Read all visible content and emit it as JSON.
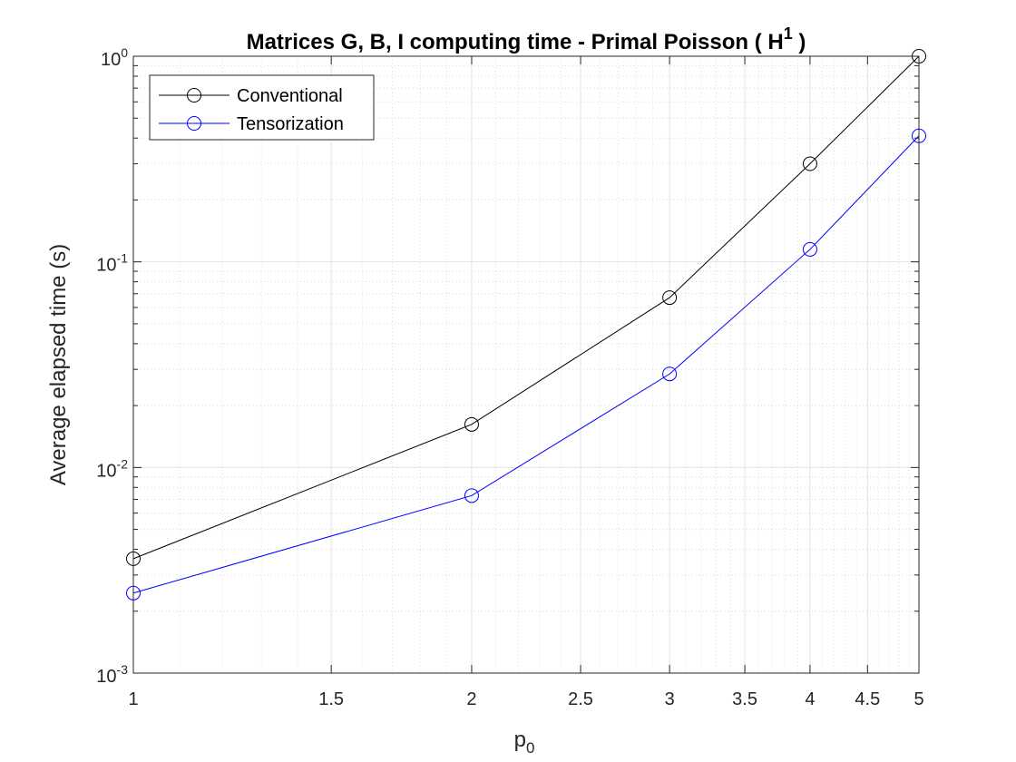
{
  "chart_data": {
    "type": "line",
    "title": "Matrices G, B, I computing time - Primal Poisson ( H",
    "title_superscript": "1",
    "title_suffix": " )",
    "xlabel": "p",
    "xlabel_subscript": "0",
    "ylabel": "Average elapsed time (s)",
    "x_scale": "log",
    "y_scale": "log",
    "xlim": [
      1,
      5
    ],
    "ylim": [
      0.001,
      1
    ],
    "x_ticks": [
      1,
      1.5,
      2,
      2.5,
      3,
      3.5,
      4,
      4.5,
      5
    ],
    "x_tick_labels": [
      "1",
      "1.5",
      "2",
      "2.5",
      "3",
      "3.5",
      "4",
      "4.5",
      "5"
    ],
    "y_ticks": [
      {
        "value": 0.001,
        "base": "10",
        "exp": "-3"
      },
      {
        "value": 0.01,
        "base": "10",
        "exp": "-2"
      },
      {
        "value": 0.1,
        "base": "10",
        "exp": "-1"
      },
      {
        "value": 1,
        "base": "10",
        "exp": "0"
      }
    ],
    "grid": true,
    "minor_grid": true,
    "legend_position": "top-left",
    "x": [
      1,
      2,
      3,
      4,
      5
    ],
    "series": [
      {
        "name": "Conventional",
        "color": "#000000",
        "marker": "circle",
        "values": [
          0.0036,
          0.0162,
          0.067,
          0.3,
          1.0
        ]
      },
      {
        "name": "Tensorization",
        "color": "#0000ff",
        "marker": "circle",
        "values": [
          0.00245,
          0.0073,
          0.0285,
          0.115,
          0.41
        ]
      }
    ]
  }
}
